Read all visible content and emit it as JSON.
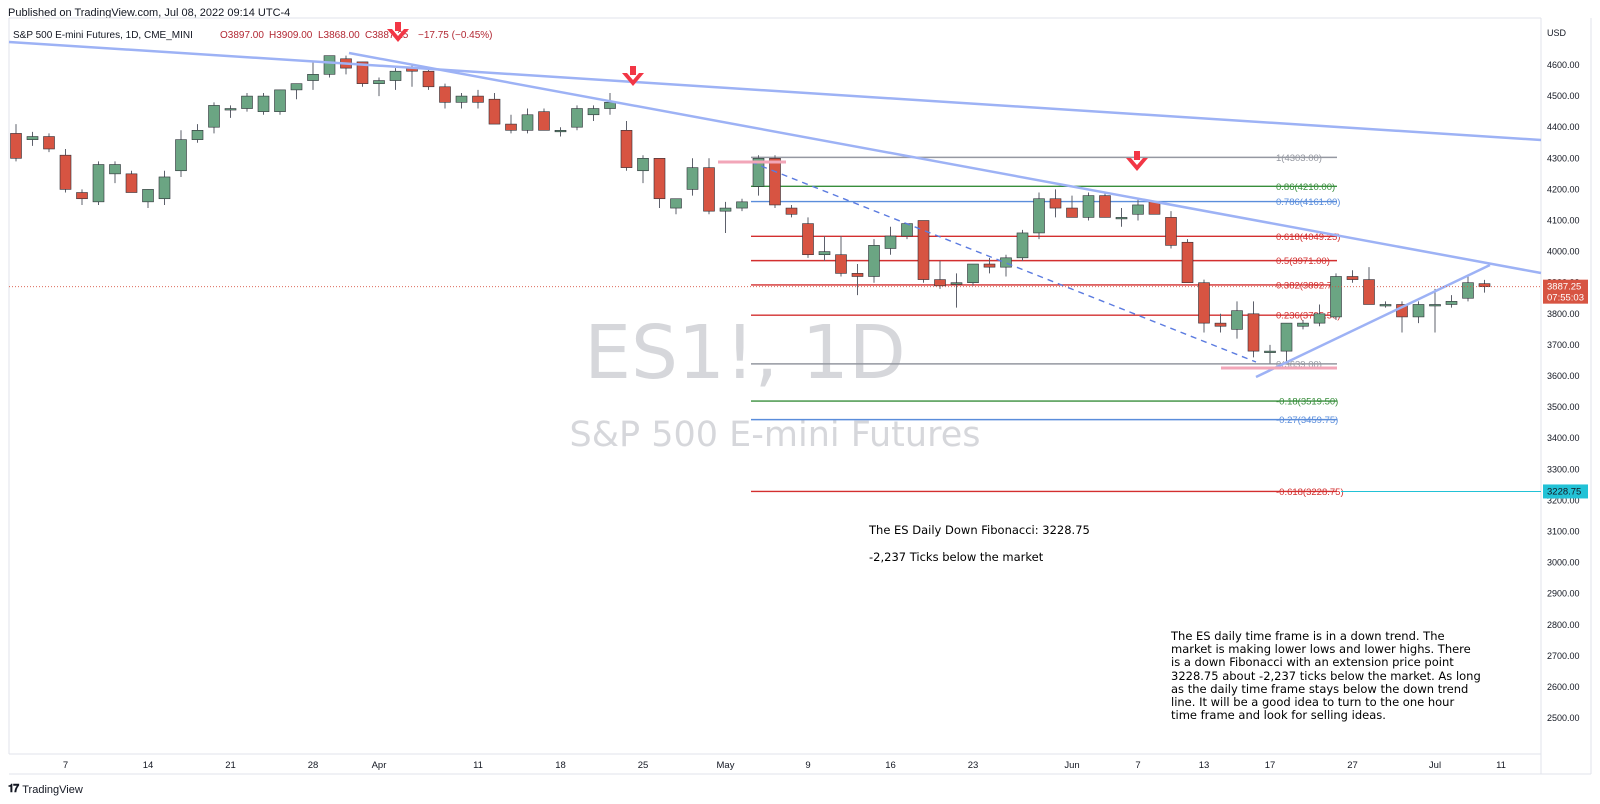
{
  "published": "Published on TradingView.com, Jul 08, 2022 09:14 UTC-4",
  "footer_brand": "TradingView",
  "header": {
    "symbol": "S&P 500 E-mini Futures, 1D, CME_MINI",
    "open": "O3897.00",
    "high": "H3909.00",
    "low": "L3868.00",
    "close": "C3887.25",
    "change": "−17.75 (−0.45%)"
  },
  "watermark": {
    "title": "ES1!, 1D",
    "subtitle": "S&P 500 E-mini Futures"
  },
  "axis": {
    "currency": "USD"
  },
  "price_tag": {
    "price": "3887.25",
    "countdown": "07:55:03"
  },
  "target_tag": "3228.75",
  "notes": {
    "fib_title": "The ES Daily Down Fibonacci: 3228.75",
    "ticks": "-2,237 Ticks below the market",
    "analysis": "The ES daily time frame is in a down trend. The market is making lower lows and lower highs. There is a down Fibonacci with an extension price point 3228.75 about -2,237 ticks below the market. As long as the daily time frame stays below the down trend line. It will be a good idea to turn to the one hour time frame and look for selling ideas."
  },
  "colors": {
    "up": "#6ba583",
    "down": "#d75442",
    "trend": "#9db2f5",
    "arrow": "#f23645",
    "target": "#22c2d6"
  },
  "chart_data": {
    "type": "candlestick",
    "ylim": [
      2400,
      4700
    ],
    "y_ticks": [
      2500,
      2600,
      2700,
      2800,
      2900,
      3000,
      3100,
      3200,
      3300,
      3400,
      3500,
      3600,
      3700,
      3800,
      3900,
      4000,
      4100,
      4200,
      4300,
      4400,
      4500,
      4600
    ],
    "x_ticks": [
      {
        "label": "7",
        "i": 3
      },
      {
        "label": "14",
        "i": 8
      },
      {
        "label": "21",
        "i": 13
      },
      {
        "label": "28",
        "i": 18
      },
      {
        "label": "Apr",
        "i": 22
      },
      {
        "label": "11",
        "i": 28
      },
      {
        "label": "18",
        "i": 33
      },
      {
        "label": "25",
        "i": 38
      },
      {
        "label": "May",
        "i": 43
      },
      {
        "label": "9",
        "i": 48
      },
      {
        "label": "16",
        "i": 53
      },
      {
        "label": "23",
        "i": 58
      },
      {
        "label": "Jun",
        "i": 64
      },
      {
        "label": "7",
        "i": 68
      },
      {
        "label": "13",
        "i": 72
      },
      {
        "label": "17",
        "i": 76
      },
      {
        "label": "27",
        "i": 81
      },
      {
        "label": "Jul",
        "i": 86
      },
      {
        "label": "11",
        "i": 90
      }
    ],
    "candles": [
      [
        4380,
        4410,
        4290,
        4300
      ],
      [
        4360,
        4385,
        4340,
        4370
      ],
      [
        4370,
        4380,
        4320,
        4330
      ],
      [
        4310,
        4330,
        4190,
        4200
      ],
      [
        4190,
        4200,
        4150,
        4170
      ],
      [
        4160,
        4290,
        4150,
        4280
      ],
      [
        4250,
        4290,
        4220,
        4280
      ],
      [
        4250,
        4260,
        4190,
        4190
      ],
      [
        4160,
        4200,
        4140,
        4200
      ],
      [
        4170,
        4260,
        4150,
        4240
      ],
      [
        4260,
        4390,
        4240,
        4360
      ],
      [
        4360,
        4410,
        4350,
        4390
      ],
      [
        4400,
        4480,
        4380,
        4470
      ],
      [
        4460,
        4470,
        4430,
        4460
      ],
      [
        4460,
        4510,
        4450,
        4500
      ],
      [
        4450,
        4510,
        4440,
        4500
      ],
      [
        4450,
        4520,
        4440,
        4520
      ],
      [
        4520,
        4540,
        4490,
        4540
      ],
      [
        4550,
        4610,
        4520,
        4570
      ],
      [
        4570,
        4630,
        4560,
        4630
      ],
      [
        4620,
        4630,
        4570,
        4590
      ],
      [
        4610,
        4610,
        4530,
        4540
      ],
      [
        4540,
        4560,
        4500,
        4550
      ],
      [
        4550,
        4590,
        4520,
        4580
      ],
      [
        4590,
        4600,
        4530,
        4580
      ],
      [
        4580,
        4590,
        4520,
        4530
      ],
      [
        4530,
        4540,
        4460,
        4480
      ],
      [
        4480,
        4510,
        4460,
        4500
      ],
      [
        4500,
        4520,
        4460,
        4480
      ],
      [
        4490,
        4510,
        4420,
        4410
      ],
      [
        4410,
        4440,
        4380,
        4390
      ],
      [
        4390,
        4460,
        4380,
        4440
      ],
      [
        4450,
        4460,
        4390,
        4390
      ],
      [
        4390,
        4400,
        4370,
        4390
      ],
      [
        4400,
        4470,
        4390,
        4460
      ],
      [
        4440,
        4470,
        4420,
        4460
      ],
      [
        4460,
        4510,
        4440,
        4480
      ],
      [
        4390,
        4420,
        4260,
        4270
      ],
      [
        4260,
        4310,
        4220,
        4300
      ],
      [
        4300,
        4300,
        4140,
        4170
      ],
      [
        4140,
        4170,
        4120,
        4170
      ],
      [
        4200,
        4300,
        4180,
        4270
      ],
      [
        4270,
        4300,
        4120,
        4130
      ],
      [
        4130,
        4160,
        4060,
        4140
      ],
      [
        4140,
        4170,
        4130,
        4160
      ],
      [
        4210,
        4310,
        4180,
        4300
      ],
      [
        4300,
        4310,
        4140,
        4150
      ],
      [
        4140,
        4150,
        4110,
        4120
      ],
      [
        4090,
        4110,
        3980,
        3990
      ],
      [
        3990,
        4050,
        3970,
        4000
      ],
      [
        3990,
        4050,
        3920,
        3930
      ],
      [
        3930,
        3960,
        3860,
        3920
      ],
      [
        3920,
        4040,
        3900,
        4020
      ],
      [
        4010,
        4080,
        3990,
        4050
      ],
      [
        4050,
        4090,
        4040,
        4090
      ],
      [
        4100,
        4100,
        3900,
        3910
      ],
      [
        3910,
        3970,
        3880,
        3890
      ],
      [
        3900,
        3930,
        3820,
        3900
      ],
      [
        3900,
        3960,
        3890,
        3960
      ],
      [
        3960,
        3980,
        3930,
        3950
      ],
      [
        3950,
        3990,
        3920,
        3980
      ],
      [
        3980,
        4070,
        3970,
        4060
      ],
      [
        4060,
        4190,
        4040,
        4170
      ],
      [
        4170,
        4200,
        4110,
        4140
      ],
      [
        4140,
        4180,
        4120,
        4110
      ],
      [
        4110,
        4190,
        4100,
        4180
      ],
      [
        4180,
        4190,
        4110,
        4110
      ],
      [
        4110,
        4140,
        4080,
        4110
      ],
      [
        4120,
        4170,
        4100,
        4150
      ],
      [
        4160,
        4160,
        4120,
        4120
      ],
      [
        4110,
        4130,
        4010,
        4020
      ],
      [
        4030,
        4040,
        3920,
        3900
      ],
      [
        3900,
        3910,
        3740,
        3770
      ],
      [
        3770,
        3800,
        3740,
        3760
      ],
      [
        3750,
        3840,
        3720,
        3810
      ],
      [
        3800,
        3840,
        3660,
        3680
      ],
      [
        3680,
        3700,
        3640,
        3680
      ],
      [
        3680,
        3770,
        3640,
        3770
      ],
      [
        3760,
        3780,
        3750,
        3770
      ],
      [
        3770,
        3830,
        3760,
        3800
      ],
      [
        3790,
        3930,
        3780,
        3920
      ],
      [
        3920,
        3940,
        3900,
        3910
      ],
      [
        3910,
        3950,
        3830,
        3830
      ],
      [
        3830,
        3840,
        3820,
        3830
      ],
      [
        3830,
        3840,
        3740,
        3790
      ],
      [
        3790,
        3840,
        3770,
        3830
      ],
      [
        3830,
        3880,
        3740,
        3830
      ],
      [
        3830,
        3860,
        3820,
        3840
      ],
      [
        3850,
        3920,
        3840,
        3900
      ],
      [
        3897,
        3909,
        3868,
        3887.25
      ]
    ],
    "fib_levels": [
      {
        "label": "1(4303.00)",
        "price": 4303.0,
        "color": "#9598a1"
      },
      {
        "label": "0.86(4210.00)",
        "price": 4210.0,
        "color": "#388e3c"
      },
      {
        "label": "0.786(4161.00)",
        "price": 4161.0,
        "color": "#5a8ddb"
      },
      {
        "label": "0.618(4049.25)",
        "price": 4049.25,
        "color": "#d32f2f"
      },
      {
        "label": "0.5(3971.00)",
        "price": 3971.0,
        "color": "#d32f2f"
      },
      {
        "label": "0.382(3892.75)",
        "price": 3892.75,
        "color": "#d32f2f"
      },
      {
        "label": "0.236(3795.50)",
        "price": 3795.5,
        "color": "#d32f2f"
      },
      {
        "label": "0(3639.00)",
        "price": 3639.0,
        "color": "#9598a1"
      },
      {
        "label": "-0.18(3519.50)",
        "price": 3519.5,
        "color": "#388e3c"
      },
      {
        "label": "-0.27(3459.75)",
        "price": 3459.75,
        "color": "#5a8ddb"
      },
      {
        "label": "-0.618(3228.75)",
        "price": 3228.75,
        "color": "#d32f2f"
      }
    ]
  }
}
